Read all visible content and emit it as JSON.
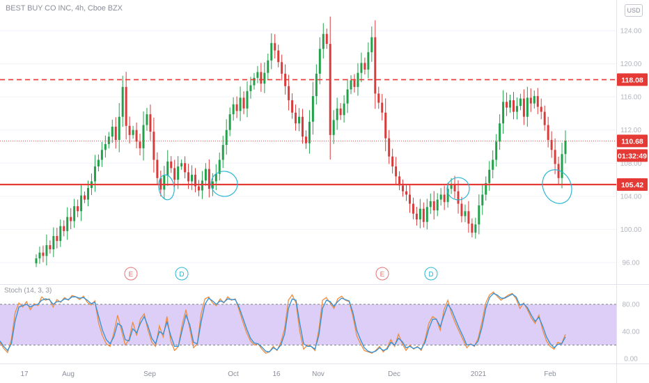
{
  "header": {
    "title": "BEST BUY CO INC, 4h, Cboe BZX",
    "currency_label": "USD"
  },
  "indicator": {
    "title": "Stoch (14, 3, 3)"
  },
  "colors": {
    "up": "#22a04a",
    "down": "#d93a3a",
    "resistance": "#e53935",
    "support": "#e53935",
    "circle": "#29b6d6",
    "stoch_k": "#2f8fd9",
    "stoch_d": "#f08c3c",
    "stoch_band": "#d6c6f5"
  },
  "chart_data": [
    {
      "type": "candlestick",
      "title": "BEST BUY CO INC, 4h, Cboe BZX",
      "x_tick_labels": [
        "17",
        "Aug",
        "Sep",
        "Oct",
        "16",
        "Nov",
        "Dec",
        "2021",
        "Feb"
      ],
      "y_tick_labels": [
        "124.00",
        "120.00",
        "116.00",
        "112.00",
        "108.00",
        "104.00",
        "100.00",
        "96.00"
      ],
      "ylim": [
        94,
        126
      ],
      "price_labels": [
        {
          "text": "118.08",
          "value": 118.08,
          "color": "#e53935"
        },
        {
          "text": "110.68",
          "value": 110.68,
          "color": "#e53935"
        },
        {
          "text": "01:32:49",
          "value": 108.9,
          "color": "#e53935"
        },
        {
          "text": "105.42",
          "value": 105.42,
          "color": "#e53935"
        }
      ],
      "horizontal_lines": [
        {
          "value": 118.08,
          "style": "dashed"
        },
        {
          "value": 105.42,
          "style": "solid"
        },
        {
          "value": 110.68,
          "style": "dotted"
        }
      ],
      "close_series": [
        96.5,
        97.2,
        96.8,
        98.1,
        97.6,
        99.2,
        98.6,
        100.4,
        99.8,
        101.5,
        101.0,
        102.8,
        102.2,
        104.1,
        103.6,
        105.0,
        105.8,
        107.6,
        108.4,
        109.6,
        110.3,
        111.2,
        112.4,
        110.8,
        113.6,
        117.2,
        112.5,
        111.4,
        112.0,
        110.6,
        109.8,
        112.6,
        113.9,
        111.8,
        108.4,
        106.2,
        104.8,
        106.5,
        108.2,
        107.4,
        106.0,
        107.6,
        108.0,
        106.9,
        105.8,
        106.6,
        105.2,
        104.7,
        105.9,
        107.3,
        104.9,
        105.8,
        106.7,
        108.4,
        110.2,
        112.0,
        113.9,
        115.1,
        114.3,
        115.9,
        114.6,
        116.7,
        117.4,
        118.3,
        119.0,
        117.6,
        118.9,
        120.4,
        122.5,
        121.6,
        120.2,
        118.8,
        117.3,
        115.6,
        114.1,
        112.8,
        113.6,
        111.2,
        110.4,
        113.0,
        116.1,
        118.8,
        121.8,
        123.6,
        122.4,
        111.4,
        113.2,
        114.6,
        113.8,
        115.2,
        116.9,
        118.0,
        117.2,
        118.9,
        120.1,
        119.3,
        121.4,
        123.2,
        116.4,
        115.3,
        114.1,
        111.0,
        108.8,
        107.6,
        106.4,
        105.3,
        104.6,
        104.2,
        103.1,
        101.9,
        101.2,
        102.5,
        100.9,
        102.7,
        103.4,
        102.3,
        103.6,
        104.2,
        103.3,
        104.9,
        105.5,
        104.6,
        103.1,
        101.6,
        102.2,
        100.7,
        99.6,
        100.6,
        102.9,
        104.2,
        105.6,
        107.2,
        108.4,
        110.6,
        112.8,
        115.4,
        114.7,
        115.6,
        114.2,
        114.9,
        115.8,
        113.6,
        115.9,
        115.2,
        116.1,
        114.8,
        114.2,
        112.6,
        110.8,
        109.6,
        107.9,
        106.2,
        109.1,
        110.7
      ],
      "events": [
        {
          "label": "E",
          "color": "#e57373"
        },
        {
          "label": "D",
          "color": "#29b6d6"
        },
        {
          "label": "E",
          "color": "#e57373"
        },
        {
          "label": "D",
          "color": "#29b6d6"
        }
      ]
    },
    {
      "type": "line",
      "title": "Stoch (14, 3, 3)",
      "y_tick_labels": [
        "80.00",
        "40.00",
        "0.00"
      ],
      "ylim": [
        -4,
        100
      ],
      "band": [
        20,
        80
      ],
      "series": [
        {
          "values": [
            24,
            15,
            9,
            28,
            68,
            82,
            76,
            84,
            72,
            81,
            78,
            91,
            86,
            88,
            76,
            87,
            83,
            90,
            86,
            93,
            91,
            87,
            92,
            83,
            79,
            85,
            52,
            34,
            22,
            18,
            38,
            64,
            42,
            20,
            28,
            54,
            34,
            58,
            66,
            42,
            24,
            18,
            48,
            32,
            62,
            26,
            12,
            18,
            50,
            72,
            44,
            16,
            22,
            66,
            88,
            91,
            82,
            78,
            88,
            82,
            91,
            86,
            88,
            72,
            54,
            38,
            26,
            20,
            22,
            14,
            8,
            10,
            18,
            12,
            24,
            44,
            86,
            94,
            82,
            40,
            14,
            20,
            18,
            12,
            42,
            86,
            90,
            82,
            74,
            88,
            92,
            86,
            84,
            62,
            34,
            22,
            12,
            10,
            8,
            12,
            18,
            10,
            16,
            28,
            18,
            36,
            22,
            12,
            20,
            14,
            18,
            12,
            28,
            52,
            62,
            58,
            42,
            72,
            86,
            66,
            52,
            40,
            28,
            16,
            22,
            18,
            30,
            54,
            82,
            94,
            98,
            92,
            86,
            90,
            94,
            96,
            88,
            74,
            82,
            72,
            60,
            52,
            64,
            42,
            26,
            18,
            14,
            24,
            22,
            36
          ]
        },
        {
          "values": [
            26,
            18,
            12,
            22,
            56,
            76,
            78,
            80,
            76,
            79,
            80,
            86,
            88,
            87,
            80,
            84,
            84,
            88,
            87,
            91,
            91,
            89,
            90,
            86,
            81,
            83,
            62,
            42,
            28,
            22,
            32,
            52,
            48,
            28,
            26,
            44,
            38,
            52,
            62,
            48,
            30,
            22,
            40,
            36,
            54,
            34,
            18,
            18,
            42,
            64,
            50,
            24,
            22,
            54,
            80,
            89,
            85,
            80,
            85,
            83,
            88,
            87,
            87,
            76,
            60,
            44,
            30,
            23,
            22,
            17,
            11,
            10,
            16,
            13,
            20,
            36,
            74,
            88,
            86,
            52,
            22,
            18,
            18,
            14,
            34,
            74,
            86,
            84,
            77,
            84,
            89,
            87,
            85,
            68,
            42,
            28,
            16,
            11,
            9,
            11,
            16,
            12,
            14,
            24,
            20,
            30,
            25,
            16,
            18,
            15,
            17,
            14,
            24,
            44,
            58,
            58,
            47,
            64,
            80,
            72,
            58,
            45,
            33,
            20,
            21,
            19,
            26,
            46,
            74,
            90,
            96,
            94,
            89,
            89,
            92,
            95,
            91,
            79,
            81,
            75,
            64,
            55,
            61,
            48,
            32,
            22,
            16,
            21,
            22,
            32
          ]
        }
      ]
    }
  ]
}
